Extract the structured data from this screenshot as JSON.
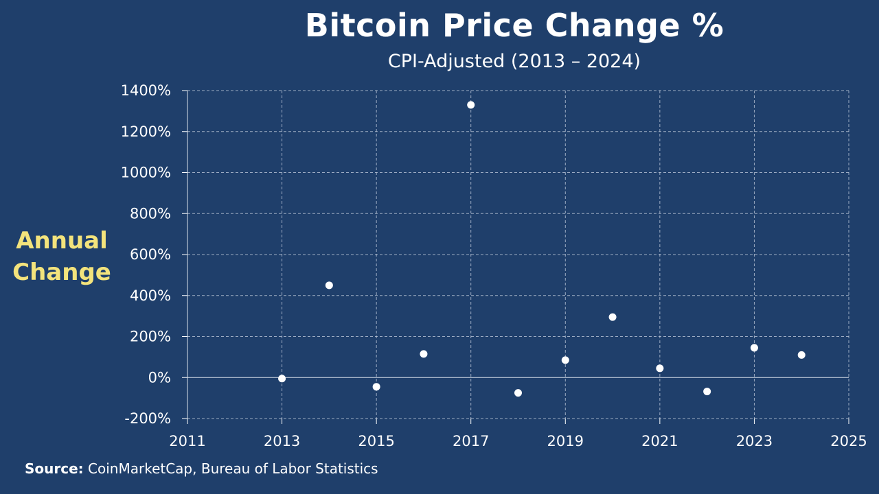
{
  "chart_data": {
    "type": "scatter",
    "title": "Bitcoin Price Change %",
    "subtitle": "CPI-Adjusted (2013 – 2024)",
    "ylabel": "Annual Change",
    "xlim": [
      2011,
      2025
    ],
    "ylim": [
      -200,
      1400
    ],
    "xticks": [
      2011,
      2013,
      2015,
      2017,
      2019,
      2021,
      2023,
      2025
    ],
    "yticks": [
      -200,
      0,
      200,
      400,
      600,
      800,
      1000,
      1200,
      1400
    ],
    "ytick_labels": [
      "-200%",
      "0%",
      "200%",
      "400%",
      "600%",
      "800%",
      "1000%",
      "1200%",
      "1400%"
    ],
    "grid": true,
    "marker_color": "#ffffff",
    "points": [
      {
        "x": 2013,
        "y": -5
      },
      {
        "x": 2014,
        "y": 450
      },
      {
        "x": 2015,
        "y": -45
      },
      {
        "x": 2016,
        "y": 115
      },
      {
        "x": 2017,
        "y": 1330
      },
      {
        "x": 2018,
        "y": -75
      },
      {
        "x": 2019,
        "y": 85
      },
      {
        "x": 2020,
        "y": 295
      },
      {
        "x": 2021,
        "y": 45
      },
      {
        "x": 2022,
        "y": -68
      },
      {
        "x": 2023,
        "y": 145
      },
      {
        "x": 2024,
        "y": 110
      }
    ]
  },
  "source": {
    "label": "Source:",
    "text": " CoinMarketCap, Bureau of Labor Statistics"
  },
  "colors": {
    "background": "#1f3f6b",
    "ylabel": "#f3e37c",
    "text": "#ffffff"
  }
}
